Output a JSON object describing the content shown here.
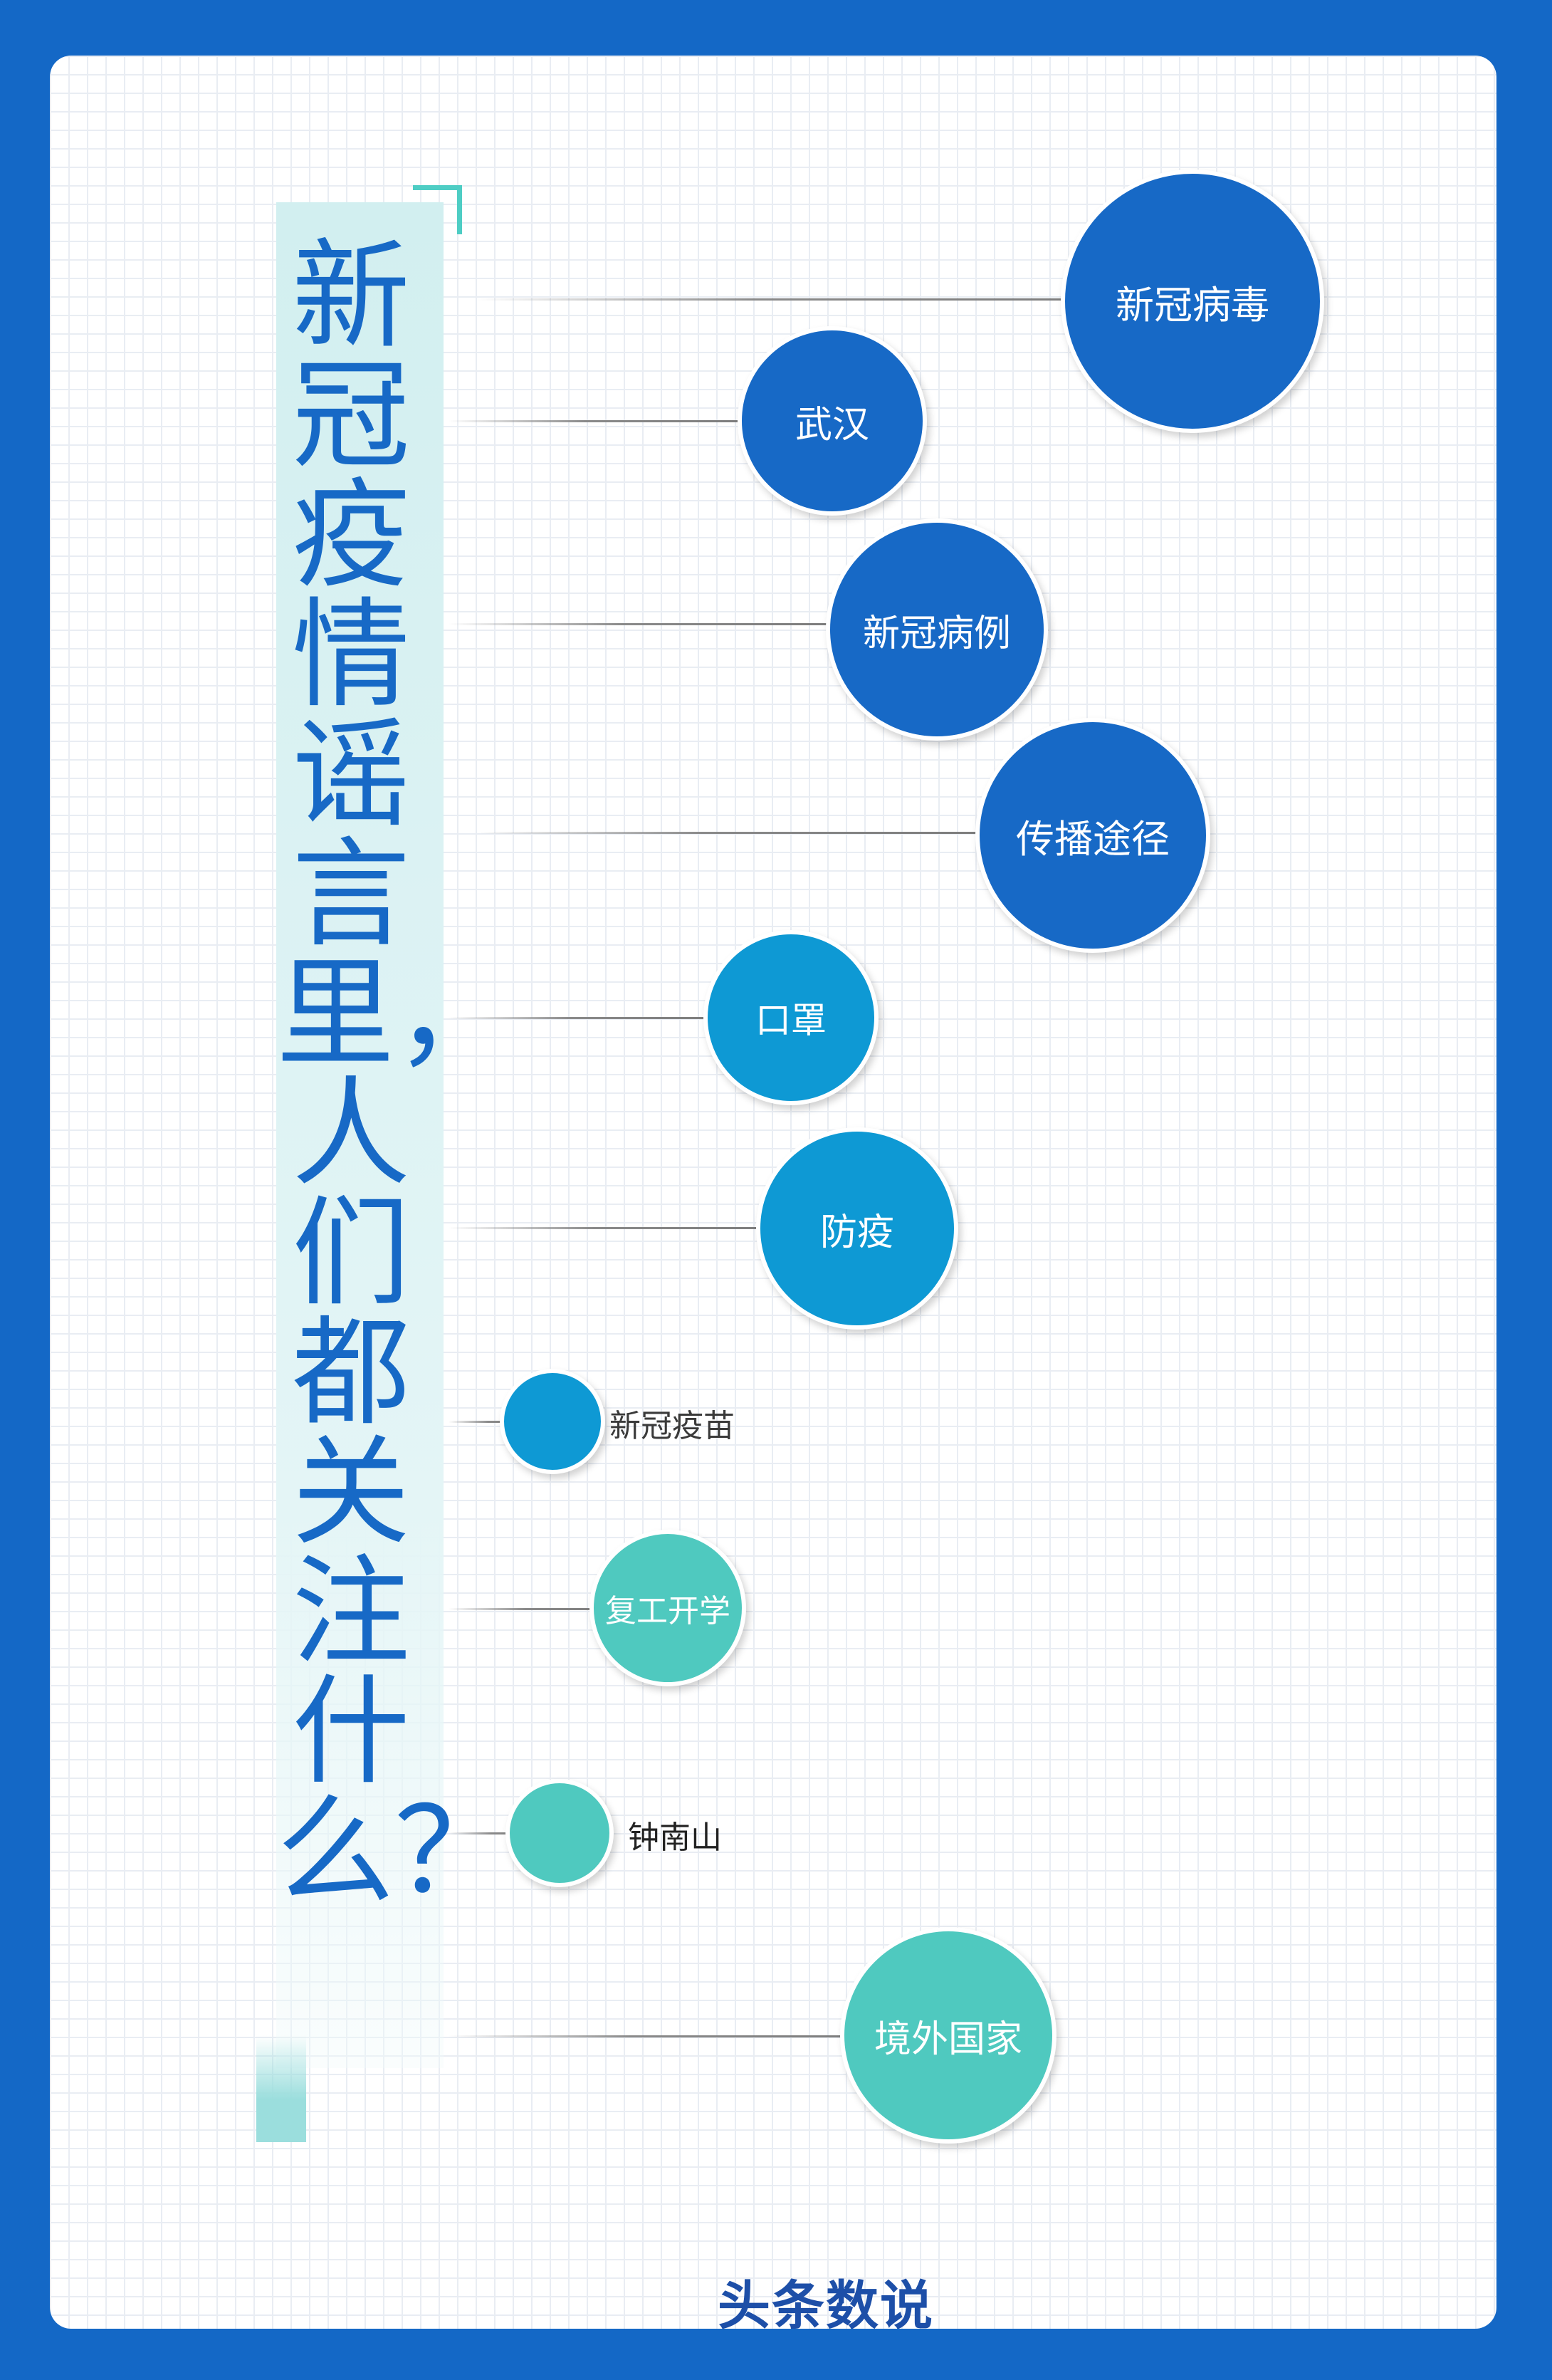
{
  "title": "新冠疫情谣言里，人们都关注什么？",
  "brand": "头条数说",
  "colors": {
    "frame": "#1468c6",
    "dark_blue": "#1769c6",
    "mid_blue": "#0e99d4",
    "teal": "#4fc9bf",
    "title": "#1769c6"
  },
  "topics": [
    {
      "label": "新冠病毒",
      "color": "dark_blue",
      "label_inside": true
    },
    {
      "label": "武汉",
      "color": "dark_blue",
      "label_inside": true
    },
    {
      "label": "新冠病例",
      "color": "dark_blue",
      "label_inside": true
    },
    {
      "label": "传播途径",
      "color": "dark_blue",
      "label_inside": true
    },
    {
      "label": "口罩",
      "color": "mid_blue",
      "label_inside": true
    },
    {
      "label": "防疫",
      "color": "mid_blue",
      "label_inside": true
    },
    {
      "label": "新冠疫苗",
      "color": "mid_blue",
      "label_inside": false
    },
    {
      "label": "复工开学",
      "color": "teal",
      "label_inside": true
    },
    {
      "label": "钟南山",
      "color": "teal",
      "label_inside": false
    },
    {
      "label": "境外国家",
      "color": "teal",
      "label_inside": true
    }
  ]
}
